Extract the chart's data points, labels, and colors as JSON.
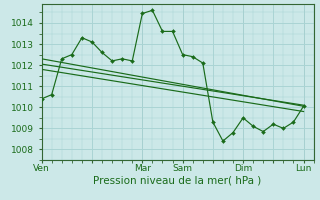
{
  "background_color": "#cce8e8",
  "grid_color": "#aad4d4",
  "line_color": "#1a6b1a",
  "spine_color": "#336633",
  "title": "Pression niveau de la mer( hPa )",
  "yticks": [
    1008,
    1009,
    1010,
    1011,
    1012,
    1013,
    1014
  ],
  "ylim": [
    1007.5,
    1014.9
  ],
  "xtick_labels": [
    "Ven",
    "",
    "Mar",
    "Sam",
    "",
    "Dim",
    "",
    "Lun"
  ],
  "xtick_positions": [
    0,
    5,
    10,
    14,
    17,
    20,
    23,
    26
  ],
  "vline_positions": [
    0,
    10,
    14,
    20,
    26
  ],
  "xlim": [
    0,
    27
  ],
  "series1_x": [
    0,
    1,
    2,
    3,
    4,
    5,
    6,
    7,
    8,
    9,
    10,
    11,
    12,
    13,
    14,
    15,
    16,
    17,
    18,
    19,
    20,
    21,
    22,
    23,
    24,
    25,
    26
  ],
  "series1_y": [
    1010.4,
    1010.6,
    1012.3,
    1012.5,
    1013.3,
    1013.1,
    1012.6,
    1012.2,
    1012.3,
    1012.2,
    1014.45,
    1014.6,
    1013.6,
    1013.6,
    1012.5,
    1012.4,
    1012.1,
    1009.3,
    1008.4,
    1008.8,
    1009.5,
    1009.1,
    1008.85,
    1009.2,
    1009.0,
    1009.3,
    1010.05
  ],
  "series2_x": [
    0,
    26
  ],
  "series2_y": [
    1012.3,
    1010.05
  ],
  "series3_x": [
    0,
    26
  ],
  "series3_y": [
    1011.8,
    1009.8
  ],
  "series4_x": [
    0,
    26
  ],
  "series4_y": [
    1012.05,
    1010.1
  ]
}
